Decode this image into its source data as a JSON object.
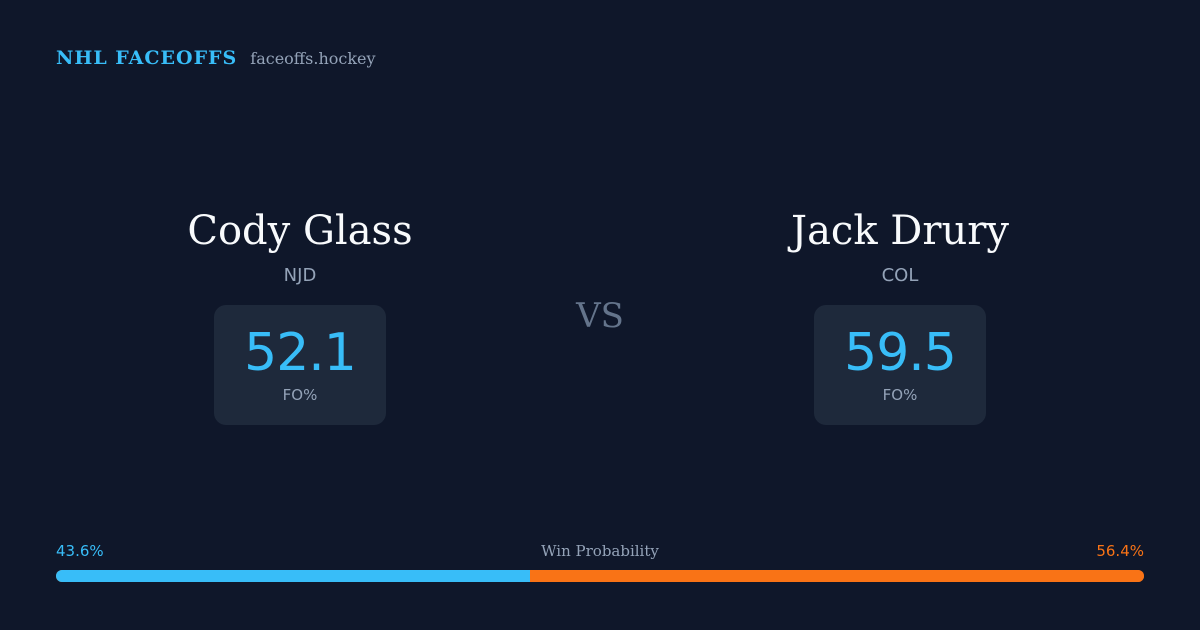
{
  "brand": {
    "name": "NHL FACEOFFS",
    "site": "faceoffs.hockey"
  },
  "players": {
    "left": {
      "name": "Cody Glass",
      "team": "NJD",
      "stat_value": "52.1",
      "stat_label": "FO%"
    },
    "right": {
      "name": "Jack Drury",
      "team": "COL",
      "stat_value": "59.5",
      "stat_label": "FO%"
    }
  },
  "versus": "VS",
  "win_probability": {
    "title": "Win Probability",
    "left_label": "43.6%",
    "right_label": "56.4%",
    "left_value": 43.6,
    "right_value": 56.4
  },
  "colors": {
    "background": "#0f172a",
    "accent_blue": "#38bdf8",
    "accent_orange": "#f97316",
    "card": "#1e293b",
    "muted_text": "#94a3b8"
  }
}
